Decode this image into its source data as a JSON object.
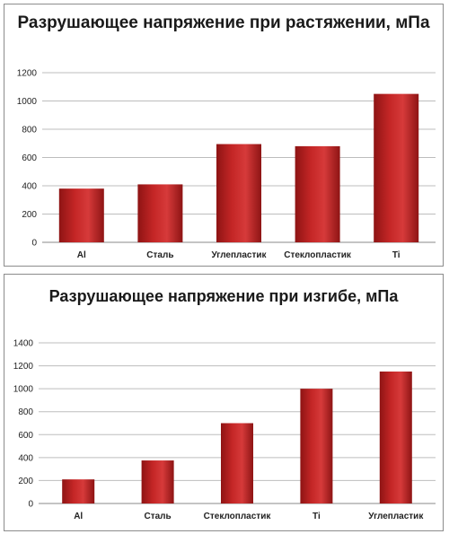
{
  "chart_data": [
    {
      "type": "bar",
      "title": "Разрушающее напряжение при растяжении, мПа",
      "categories": [
        "Al",
        "Сталь",
        "Углепластик",
        "Стеклопластик",
        "Ti"
      ],
      "values": [
        380,
        410,
        695,
        680,
        1050
      ],
      "yticks": [
        0,
        200,
        400,
        600,
        800,
        1000,
        1200
      ],
      "ylim": [
        0,
        1200
      ],
      "grid": true,
      "legend": "none",
      "bar_color": "#c42626"
    },
    {
      "type": "bar",
      "title": "Разрушающее напряжение при изгибе, мПа",
      "categories": [
        "Al",
        "Сталь",
        "Стеклопластик",
        "Ti",
        "Углепластик"
      ],
      "values": [
        210,
        375,
        700,
        1000,
        1150
      ],
      "yticks": [
        0,
        200,
        400,
        600,
        800,
        1000,
        1200,
        1400
      ],
      "ylim": [
        0,
        1400
      ],
      "grid": true,
      "legend": "none",
      "bar_color": "#c42626"
    }
  ]
}
